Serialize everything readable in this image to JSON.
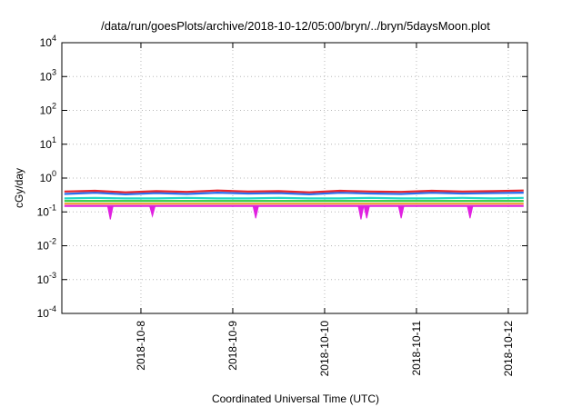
{
  "chart_data": {
    "type": "line",
    "title": "/data/run/goesPlots/archive/2018-10-12/05:00/bryn/../bryn/5daysMoon.plot",
    "xlabel": "Coordinated Universal Time (UTC)",
    "ylabel": "cGy/day",
    "yscale": "log",
    "ylim": [
      0.0001,
      10000
    ],
    "xlim": [
      "2018-10-07T03:20",
      "2018-10-12T05:00"
    ],
    "grid": true,
    "y_ticks": [
      {
        "value": 0.0001,
        "base": "10",
        "exp": "-4"
      },
      {
        "value": 0.001,
        "base": "10",
        "exp": "-3"
      },
      {
        "value": 0.01,
        "base": "10",
        "exp": "-2"
      },
      {
        "value": 0.1,
        "base": "10",
        "exp": "-1"
      },
      {
        "value": 1,
        "base": "10",
        "exp": "0"
      },
      {
        "value": 10,
        "base": "10",
        "exp": "1"
      },
      {
        "value": 100,
        "base": "10",
        "exp": "2"
      },
      {
        "value": 1000,
        "base": "10",
        "exp": "3"
      },
      {
        "value": 10000,
        "base": "10",
        "exp": "4"
      }
    ],
    "x_ticks": [
      {
        "value": "2018-10-08",
        "label": "2018-10-8"
      },
      {
        "value": "2018-10-09",
        "label": "2018-10-9"
      },
      {
        "value": "2018-10-10",
        "label": "2018-10-10"
      },
      {
        "value": "2018-10-11",
        "label": "2018-10-11"
      },
      {
        "value": "2018-10-12",
        "label": "2018-10-12"
      }
    ],
    "x": [
      "2018-10-07T04:00",
      "2018-10-07T12:00",
      "2018-10-07T20:00",
      "2018-10-08T04:00",
      "2018-10-08T12:00",
      "2018-10-08T20:00",
      "2018-10-09T04:00",
      "2018-10-09T12:00",
      "2018-10-09T20:00",
      "2018-10-10T04:00",
      "2018-10-10T12:00",
      "2018-10-10T20:00",
      "2018-10-11T04:00",
      "2018-10-11T12:00",
      "2018-10-11T20:00",
      "2018-10-12T04:00"
    ],
    "series": [
      {
        "color": "#e8242c",
        "values": [
          0.4,
          0.42,
          0.38,
          0.41,
          0.39,
          0.43,
          0.4,
          0.41,
          0.38,
          0.42,
          0.4,
          0.39,
          0.42,
          0.4,
          0.41,
          0.43
        ]
      },
      {
        "color": "#2a6ef0",
        "values": [
          0.34,
          0.37,
          0.33,
          0.36,
          0.34,
          0.37,
          0.35,
          0.36,
          0.33,
          0.37,
          0.35,
          0.34,
          0.37,
          0.35,
          0.36,
          0.37
        ]
      },
      {
        "color": "#22d7c7",
        "values": [
          0.25,
          0.26,
          0.25,
          0.25,
          0.26,
          0.25,
          0.25,
          0.26,
          0.25,
          0.25,
          0.26,
          0.25,
          0.25,
          0.26,
          0.25,
          0.26
        ]
      },
      {
        "color": "#2ecc40",
        "values": [
          0.21,
          0.21,
          0.21,
          0.21,
          0.21,
          0.21,
          0.21,
          0.21,
          0.21,
          0.21,
          0.21,
          0.21,
          0.21,
          0.21,
          0.21,
          0.21
        ]
      },
      {
        "color": "#f0a030",
        "values": [
          0.175,
          0.175,
          0.175,
          0.175,
          0.175,
          0.175,
          0.175,
          0.175,
          0.175,
          0.175,
          0.175,
          0.175,
          0.175,
          0.175,
          0.175,
          0.175
        ]
      },
      {
        "color": "#e020e0",
        "values": [
          0.15,
          0.15,
          0.15,
          0.15,
          0.15,
          0.15,
          0.15,
          0.15,
          0.15,
          0.15,
          0.15,
          0.15,
          0.15,
          0.15,
          0.15,
          0.15
        ]
      }
    ],
    "dips": [
      {
        "x": "2018-10-07T16:00",
        "value": 0.06
      },
      {
        "x": "2018-10-08T03:00",
        "value": 0.075
      },
      {
        "x": "2018-10-09T06:00",
        "value": 0.065
      },
      {
        "x": "2018-10-10T09:30",
        "value": 0.06
      },
      {
        "x": "2018-10-10T11:00",
        "value": 0.065
      },
      {
        "x": "2018-10-10T20:00",
        "value": 0.065
      },
      {
        "x": "2018-10-11T14:00",
        "value": 0.065
      }
    ]
  }
}
